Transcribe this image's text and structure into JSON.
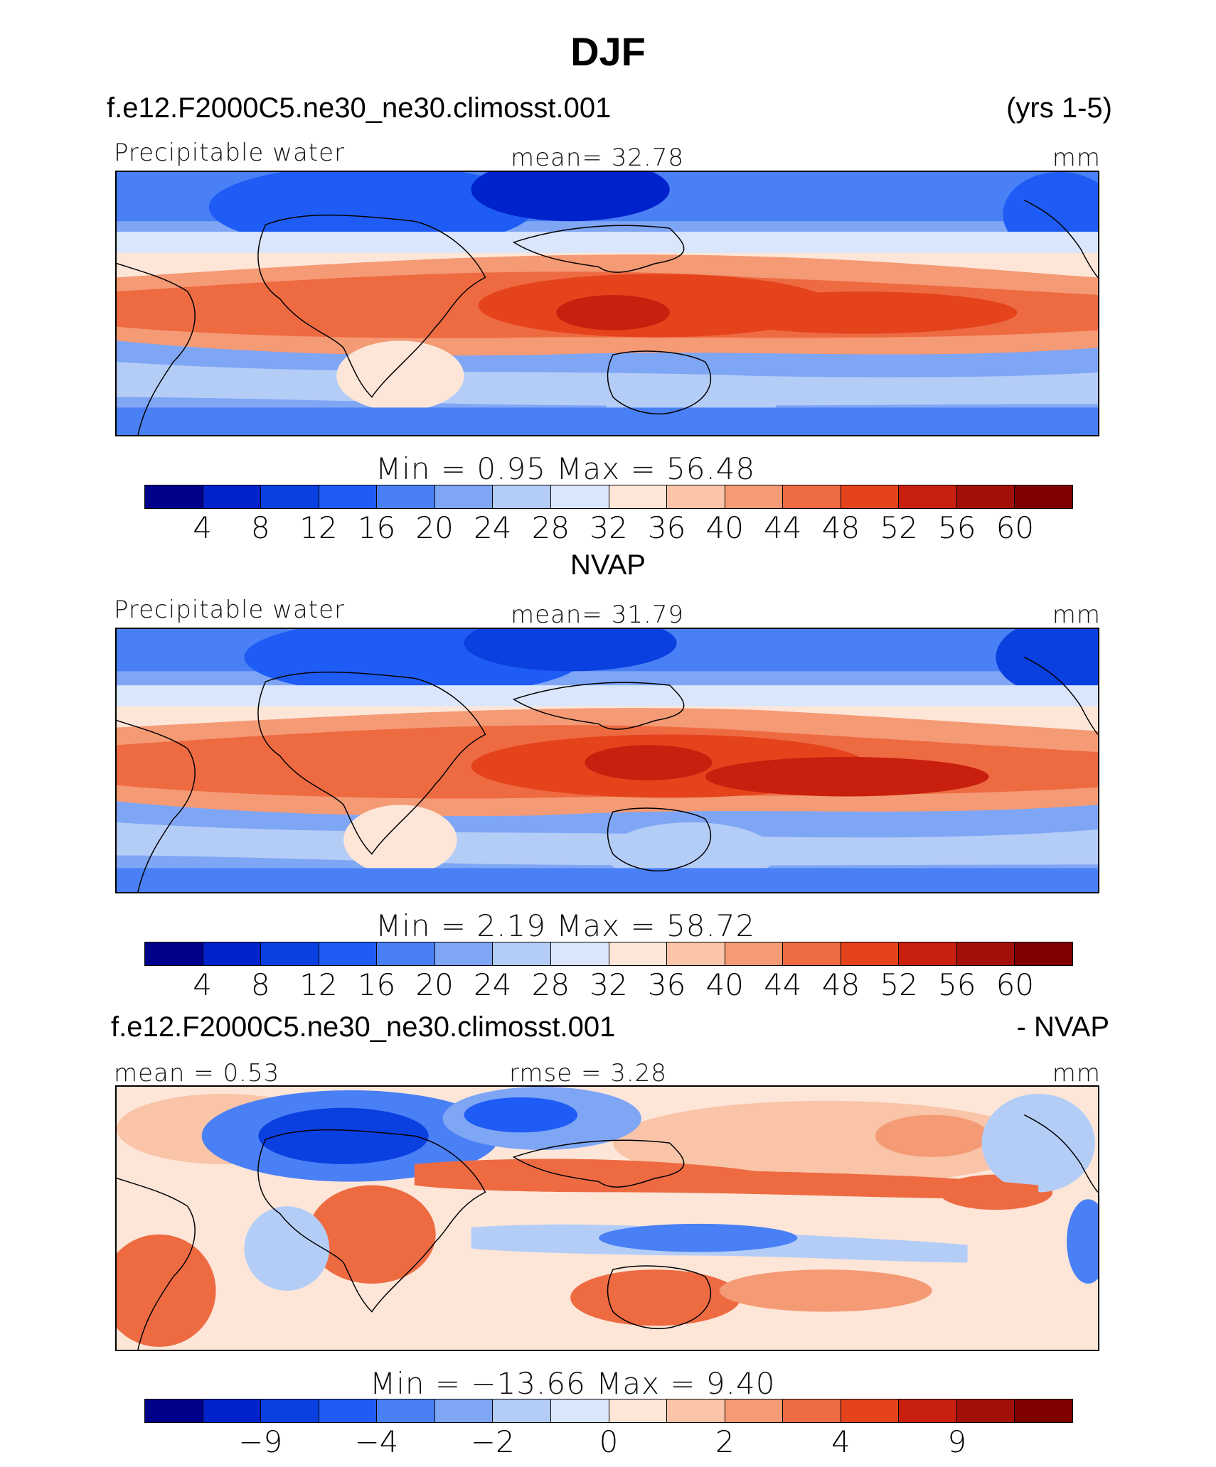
{
  "title": "DJF",
  "colors": [
    "#00008b",
    "#0022cc",
    "#0a3fe0",
    "#1e5cf5",
    "#4a80f5",
    "#7fa6f5",
    "#b4cdf7",
    "#d9e6fb",
    "#fde6d8",
    "#f9c4a8",
    "#f49a75",
    "#ee6b42",
    "#e5431c",
    "#c81f0e",
    "#a3100a",
    "#7e0000"
  ],
  "panels": [
    {
      "header_left": "f.e12.F2000C5.ne30_ne30.climosst.001",
      "header_right": "(yrs 1-5)",
      "left_label": "Precipitable water",
      "center_label": "mean=   32.78",
      "right_label": "mm",
      "minmax": "Min  =    0.95  Max  =    56.48",
      "colorbar_ticks": [
        "4",
        "8",
        "12",
        "16",
        "20",
        "24",
        "28",
        "32",
        "36",
        "40",
        "44",
        "48",
        "52",
        "56",
        "60"
      ]
    },
    {
      "header_center": "NVAP",
      "left_label": "Precipitable water",
      "center_label": "mean=   31.79",
      "right_label": "mm",
      "minmax": "Min  =    2.19  Max  =    58.72",
      "colorbar_ticks": [
        "4",
        "8",
        "12",
        "16",
        "20",
        "24",
        "28",
        "32",
        "36",
        "40",
        "44",
        "48",
        "52",
        "56",
        "60"
      ]
    },
    {
      "header_left": "f.e12.F2000C5.ne30_ne30.climosst.001",
      "header_right": "- NVAP",
      "left_label": "mean  =    0.53",
      "center_label": "rmse  =    3.28",
      "right_label": "mm",
      "minmax": "Min  =  −13.66  Max  =    9.40",
      "colorbar_ticks": [
        "−9",
        "−4",
        "−2",
        "0",
        "2",
        "4",
        "9"
      ]
    }
  ]
}
